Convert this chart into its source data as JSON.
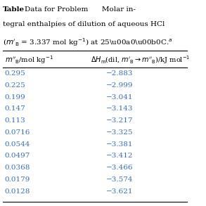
{
  "col1_values": [
    "0.295",
    "0.225",
    "0.199",
    "0.147",
    "0.113",
    "0.0716",
    "0.0544",
    "0.0497",
    "0.0368",
    "0.0179",
    "0.0128"
  ],
  "col2_values": [
    "−2.883",
    "−2.999",
    "−3.041",
    "−3.143",
    "−3.217",
    "−3.325",
    "−3.381",
    "−3.412",
    "−3.466",
    "−3.574",
    "−3.621"
  ],
  "background_color": "#ffffff",
  "text_color": "#000000",
  "data_color": "#3a6db5",
  "header_color": "#000000",
  "figsize": [
    2.93,
    2.93
  ],
  "dpi": 100
}
